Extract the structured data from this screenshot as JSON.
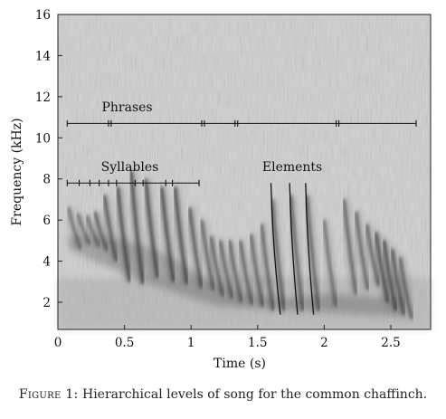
{
  "figure": {
    "caption_label": "Figure 1:",
    "caption_text": " Hierarchical levels of song for the common chaffinch."
  },
  "chart_data": {
    "type": "spectrogram",
    "xlabel": "Time (s)",
    "ylabel": "Frequency (kHz)",
    "xlim": [
      0,
      2.75
    ],
    "ylim": [
      0.7,
      16
    ],
    "xticks": [
      0,
      0.5,
      1,
      1.5,
      2,
      2.5
    ],
    "xtick_labels": [
      "0",
      "0.5",
      "1",
      "1.5",
      "2",
      "2.5"
    ],
    "yticks": [
      2,
      4,
      6,
      8,
      10,
      12,
      14,
      16
    ],
    "ytick_labels": [
      "2",
      "4",
      "6",
      "8",
      "10",
      "12",
      "14",
      "16"
    ],
    "annotations": {
      "phrases": {
        "label": "Phrases",
        "label_position": {
          "time": 0.52,
          "freq": 11.5
        },
        "bracket_freq": 10.7,
        "boundaries": [
          0.07,
          0.38,
          0.4,
          1.08,
          1.1,
          1.33,
          1.35,
          2.09,
          2.11,
          2.69
        ]
      },
      "syllables": {
        "label": "Syllables",
        "label_position": {
          "time": 0.54,
          "freq": 8.6
        },
        "bracket_freq": 7.8,
        "boundaries": [
          0.07,
          0.16,
          0.24,
          0.31,
          0.38,
          0.44,
          0.58,
          0.64,
          0.81,
          0.86,
          1.06
        ]
      },
      "elements": {
        "label": "Elements",
        "label_position": {
          "time": 1.76,
          "freq": 8.6
        },
        "traces": [
          {
            "t_top": 1.6,
            "f_top": 7.8,
            "t_bottom": 1.67,
            "f_bottom": 1.4
          },
          {
            "t_top": 1.74,
            "f_top": 7.8,
            "t_bottom": 1.8,
            "f_bottom": 1.4
          },
          {
            "t_top": 1.86,
            "f_top": 7.8,
            "t_bottom": 1.92,
            "f_bottom": 1.4
          }
        ]
      }
    },
    "note_streaks": [
      {
        "t": 0.1,
        "f_top": 6.6,
        "f_bottom": 4.6,
        "strength": 0.6
      },
      {
        "t": 0.17,
        "f_top": 6.3,
        "f_bottom": 4.8,
        "strength": 0.6
      },
      {
        "t": 0.24,
        "f_top": 6.2,
        "f_bottom": 4.7,
        "strength": 0.6
      },
      {
        "t": 0.3,
        "f_top": 6.4,
        "f_bottom": 4.5,
        "strength": 0.7
      },
      {
        "t": 0.37,
        "f_top": 7.2,
        "f_bottom": 4.0,
        "strength": 0.8
      },
      {
        "t": 0.47,
        "f_top": 7.6,
        "f_bottom": 3.0,
        "strength": 0.9
      },
      {
        "t": 0.57,
        "f_top": 8.4,
        "f_bottom": 2.9,
        "strength": 0.9
      },
      {
        "t": 0.68,
        "f_top": 8.0,
        "f_bottom": 3.2,
        "strength": 0.9
      },
      {
        "t": 0.8,
        "f_top": 7.6,
        "f_bottom": 3.0,
        "strength": 0.9
      },
      {
        "t": 0.9,
        "f_top": 7.6,
        "f_bottom": 2.9,
        "strength": 0.9
      },
      {
        "t": 1.01,
        "f_top": 6.6,
        "f_bottom": 2.7,
        "strength": 0.8
      },
      {
        "t": 1.1,
        "f_top": 6.0,
        "f_bottom": 2.6,
        "strength": 0.7
      },
      {
        "t": 1.17,
        "f_top": 5.2,
        "f_bottom": 2.3,
        "strength": 0.7
      },
      {
        "t": 1.24,
        "f_top": 5.0,
        "f_bottom": 2.2,
        "strength": 0.7
      },
      {
        "t": 1.31,
        "f_top": 5.0,
        "f_bottom": 2.0,
        "strength": 0.7
      },
      {
        "t": 1.39,
        "f_top": 5.0,
        "f_bottom": 1.9,
        "strength": 0.7
      },
      {
        "t": 1.47,
        "f_top": 5.3,
        "f_bottom": 1.8,
        "strength": 0.7
      },
      {
        "t": 1.55,
        "f_top": 5.8,
        "f_bottom": 1.6,
        "strength": 0.7
      },
      {
        "t": 1.63,
        "f_top": 7.0,
        "f_bottom": 1.6,
        "strength": 0.7
      },
      {
        "t": 1.77,
        "f_top": 7.2,
        "f_bottom": 1.6,
        "strength": 0.7
      },
      {
        "t": 1.89,
        "f_top": 7.2,
        "f_bottom": 1.6,
        "strength": 0.7
      },
      {
        "t": 2.02,
        "f_top": 6.0,
        "f_bottom": 1.8,
        "strength": 0.6
      },
      {
        "t": 2.17,
        "f_top": 7.0,
        "f_bottom": 2.4,
        "strength": 0.7
      },
      {
        "t": 2.26,
        "f_top": 6.4,
        "f_bottom": 2.6,
        "strength": 0.7
      },
      {
        "t": 2.34,
        "f_top": 5.8,
        "f_bottom": 2.8,
        "strength": 0.7
      },
      {
        "t": 2.41,
        "f_top": 5.4,
        "f_bottom": 2.0,
        "strength": 0.9
      },
      {
        "t": 2.47,
        "f_top": 5.0,
        "f_bottom": 1.6,
        "strength": 0.9
      },
      {
        "t": 2.53,
        "f_top": 4.6,
        "f_bottom": 1.4,
        "strength": 0.8
      },
      {
        "t": 2.59,
        "f_top": 4.2,
        "f_bottom": 1.2,
        "strength": 0.7
      }
    ],
    "colors": {
      "background": "#cfcfcf",
      "streak": "#303030",
      "annotation": "#111111"
    }
  }
}
